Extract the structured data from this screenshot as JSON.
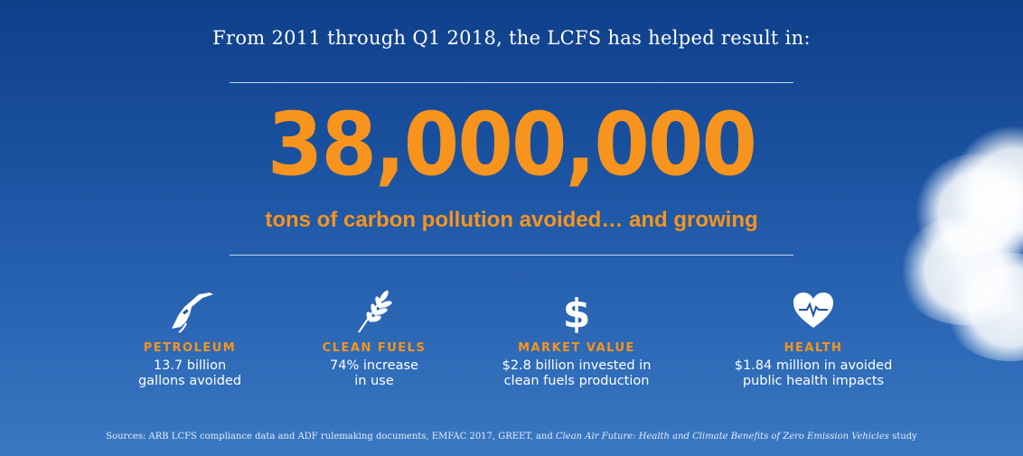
{
  "headline": "From 2011 through Q1 2018, the LCFS has helped result in:",
  "hero": {
    "number": "38,000,000",
    "caption": "tons of carbon pollution avoided… and growing"
  },
  "stats": [
    {
      "icon": "fuel-nozzle-icon",
      "label": "PETROLEUM",
      "desc": "13.7 billion\ngallons avoided"
    },
    {
      "icon": "wheat-icon",
      "label": "CLEAN FUELS",
      "desc": "74% increase\nin use"
    },
    {
      "icon": "dollar-sign-icon",
      "label": "MARKET VALUE",
      "desc": "$2.8 billion invested in\nclean fuels production"
    },
    {
      "icon": "heart-pulse-icon",
      "label": "HEALTH",
      "desc": "$1.84 million in avoided\npublic health impacts"
    }
  ],
  "sources": {
    "prefix": "Sources: ARB LCFS compliance data and ADF rulemaking documents, EMFAC 2017, GREET, and ",
    "title": "Clean Air Future: Health and Climate Benefits of Zero Emission Vehicles",
    "suffix": " study"
  },
  "colors": {
    "accent": "#f7941d",
    "background_top": "#0f3f8a",
    "background_bottom": "#3a78c2",
    "text": "#ffffff"
  }
}
